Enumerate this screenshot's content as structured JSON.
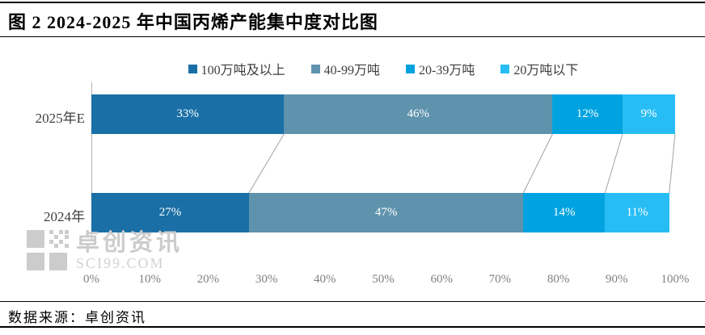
{
  "title": "图 2 2024-2025 年中国丙烯产能集中度对比图",
  "source": {
    "label": "数据来源：卓创资讯"
  },
  "watermark": {
    "line1": "卓创资讯",
    "line2": "SCI99.COM"
  },
  "chart_data": {
    "type": "bar",
    "stacked": true,
    "orientation": "horizontal",
    "title": "图 2 2024-2025 年中国丙烯产能集中度对比图",
    "categories": [
      "2025年E",
      "2024年"
    ],
    "series": [
      {
        "name": "100万吨及以上",
        "color": "#1a6fa6",
        "values": [
          33,
          27
        ]
      },
      {
        "name": "40-99万吨",
        "color": "#5e92ad",
        "values": [
          46,
          47
        ]
      },
      {
        "name": "20-39万吨",
        "color": "#00a3e0",
        "values": [
          12,
          14
        ]
      },
      {
        "name": "20万吨以下",
        "color": "#27bdf4",
        "values": [
          9,
          11
        ]
      }
    ],
    "value_label_format": "percent",
    "xlim": [
      0,
      100
    ],
    "x_ticks": [
      "0%",
      "10%",
      "20%",
      "30%",
      "40%",
      "50%",
      "60%",
      "70%",
      "80%",
      "90%",
      "100%"
    ],
    "legend_position": "top",
    "grid": false,
    "connector_line_color": "#a3a3a3"
  }
}
